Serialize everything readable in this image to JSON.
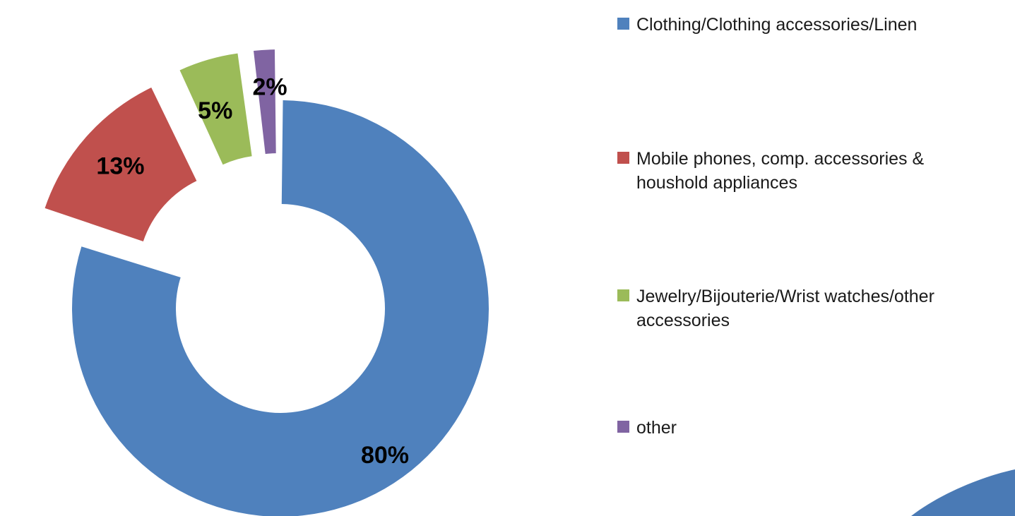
{
  "chart_data": {
    "type": "pie",
    "variant": "exploded donut",
    "title": "",
    "legend_position": "right",
    "slices": [
      {
        "label": "Clothing/Clothing accessories/Linen",
        "value": 80,
        "value_label": "80%",
        "color": "#4f81bd"
      },
      {
        "label": "Mobile phones,  comp. accessories & houshold appliances",
        "value": 13,
        "value_label": "13%",
        "color": "#c0504d"
      },
      {
        "label": "Jewelry/Bijouterie/Wrist watches/other accessories",
        "value": 5,
        "value_label": "5%",
        "color": "#9bbb59"
      },
      {
        "label": "other",
        "value": 2,
        "value_label": "2%",
        "color": "#8064a2"
      }
    ]
  },
  "legend": {
    "items": [
      {
        "label": "Clothing/Clothing accessories/Linen",
        "color": "#4f81bd"
      },
      {
        "label": "Mobile phones,  comp. accessories & houshold appliances",
        "color": "#c0504d"
      },
      {
        "label": "Jewelry/Bijouterie/Wrist watches/other accessories",
        "color": "#9bbb59"
      },
      {
        "label": "other",
        "color": "#8064a2"
      }
    ]
  },
  "decoration": {
    "corner_shape_color": "#4a7ab5"
  }
}
